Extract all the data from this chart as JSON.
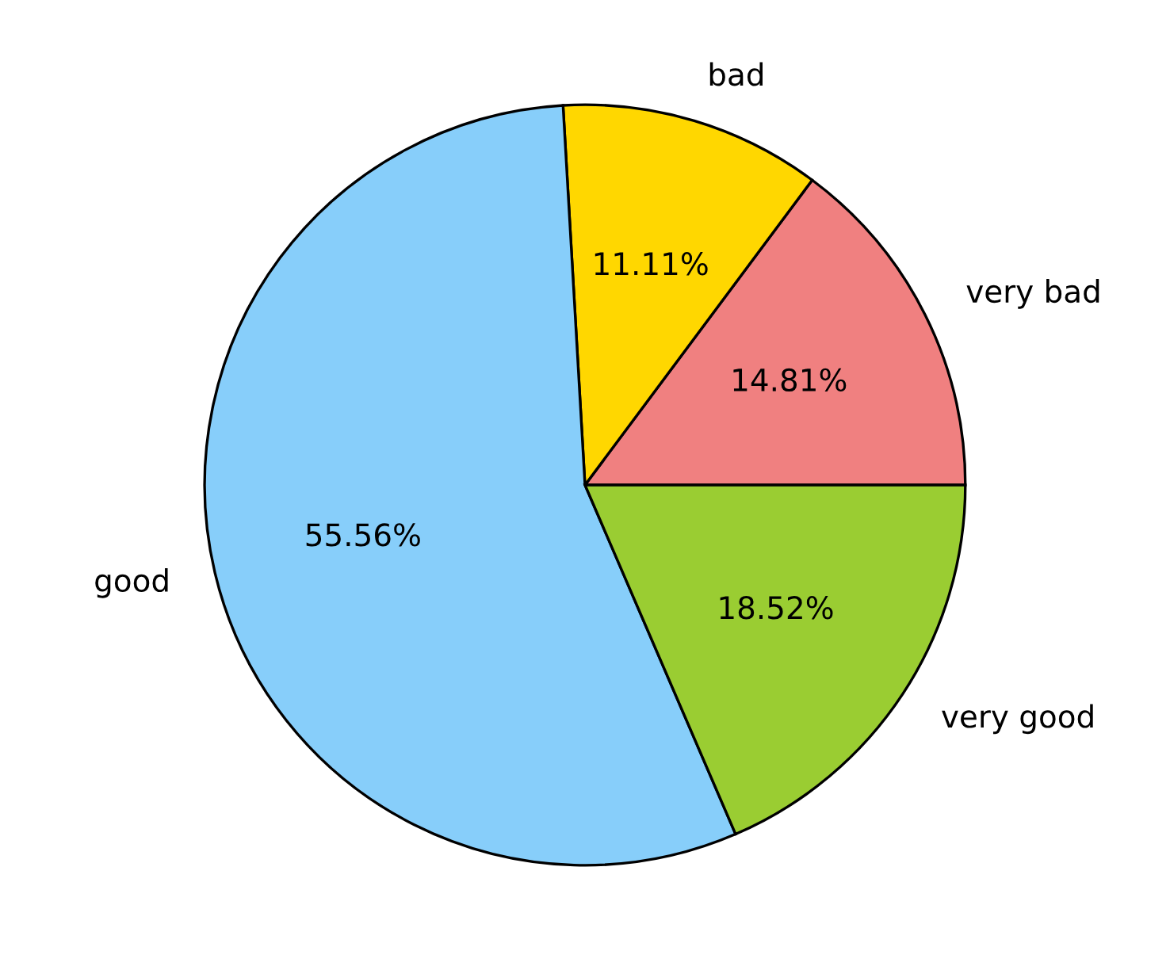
{
  "chart_data": {
    "type": "pie",
    "categories": [
      "very bad",
      "bad",
      "good",
      "very good"
    ],
    "values": [
      14.81,
      11.11,
      55.56,
      18.52
    ],
    "value_labels": [
      "14.81%",
      "11.11%",
      "55.56%",
      "18.52%"
    ],
    "colors": [
      "#f08080",
      "#ffd700",
      "#87cefa",
      "#9acd32"
    ],
    "legend": false
  }
}
